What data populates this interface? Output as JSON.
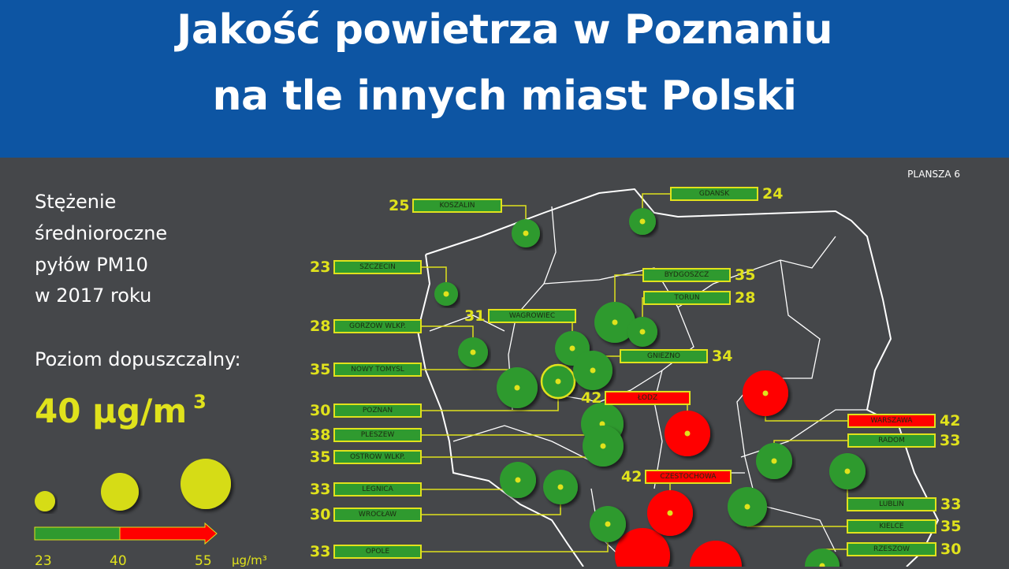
{
  "header": {
    "title_line1": "Jakość powietrza w Poznaniu",
    "title_line2": "na tle innych miast Polski"
  },
  "plate": "PLANSZA 6",
  "description": {
    "line1": "Stężenie",
    "line2": "średnioroczne",
    "line3": "pyłów PM10",
    "line4": "w 2017 roku"
  },
  "limit": {
    "label": "Poziom dopuszczalny:",
    "value": "40 µg/m",
    "exponent": "3"
  },
  "legend": {
    "low": "23",
    "mid": "40",
    "high": "55",
    "unit": "µg/m³"
  },
  "colors": {
    "header": "#0d55a3",
    "background": "#45474a",
    "below_limit": "#2f9a2f",
    "above_limit": "#ff0000",
    "accent": "#e0e21c"
  },
  "cities": [
    {
      "name": "KOSZALIN",
      "value": 25,
      "status": "below"
    },
    {
      "name": "SZCZECIN",
      "value": 23,
      "status": "below"
    },
    {
      "name": "GORZOW WLKP.",
      "value": 28,
      "status": "below"
    },
    {
      "name": "NOWY TOMYSL",
      "value": 35,
      "status": "below"
    },
    {
      "name": "POZNAN",
      "value": 30,
      "status": "below"
    },
    {
      "name": "PLESZEW",
      "value": 38,
      "status": "below"
    },
    {
      "name": "OSTROW WLKP.",
      "value": 35,
      "status": "below"
    },
    {
      "name": "LEGNICA",
      "value": 33,
      "status": "below"
    },
    {
      "name": "WROCŁAW",
      "value": 30,
      "status": "below"
    },
    {
      "name": "OPOLE",
      "value": 33,
      "status": "below"
    },
    {
      "name": "WAGROWIEC",
      "value": 31,
      "status": "below"
    },
    {
      "name": "GDANSK",
      "value": 24,
      "status": "below"
    },
    {
      "name": "BYDGOSZCZ",
      "value": 35,
      "status": "below"
    },
    {
      "name": "TORUN",
      "value": 28,
      "status": "below"
    },
    {
      "name": "GNIEZNO",
      "value": 34,
      "status": "below"
    },
    {
      "name": "ŁODZ",
      "value": 42,
      "status": "above"
    },
    {
      "name": "WARSZAWA",
      "value": 42,
      "status": "above"
    },
    {
      "name": "RADOM",
      "value": 33,
      "status": "below"
    },
    {
      "name": "LUBLIN",
      "value": 33,
      "status": "below"
    },
    {
      "name": "KIELCE",
      "value": 35,
      "status": "below"
    },
    {
      "name": "RZESZOW",
      "value": 30,
      "status": "below"
    },
    {
      "name": "CZESTOCHOWA",
      "value": 42,
      "status": "above"
    }
  ]
}
